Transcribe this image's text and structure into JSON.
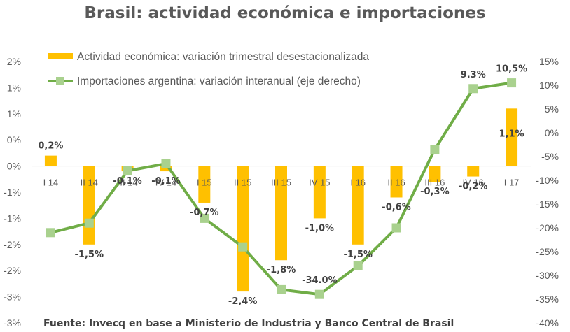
{
  "chart_data": {
    "type": "bar",
    "title": "Brasil: actividad económica e importaciones",
    "categories": [
      "I 14",
      "II 14",
      "III 14",
      "IV 14",
      "I 15",
      "II 15",
      "III 15",
      "IV 15",
      "I 16",
      "II 16",
      "III 16",
      "IV 16",
      "I 17"
    ],
    "series": [
      {
        "name": "Actividad económica: variación trimestral desestacionalizada",
        "type": "bar",
        "axis": "left",
        "color": "#FFC000",
        "values": [
          0.2,
          -1.5,
          -0.1,
          -0.1,
          -0.7,
          -2.4,
          -1.8,
          -1.0,
          -1.5,
          -0.6,
          -0.3,
          -0.2,
          1.1
        ],
        "labels": [
          "0,2%",
          "-1,5%",
          "-0,1%",
          "-0,1%",
          "-0,7%",
          "-2,4%",
          "-1,8%",
          "-1,0%",
          "-1,5%",
          "-0,6%",
          "-0,3%",
          "-0,2%",
          "1,1%"
        ]
      },
      {
        "name": "Importaciones argentina: variación interanual (eje derecho)",
        "type": "line",
        "axis": "right",
        "color": "#70AD47",
        "marker_color": "#A9D18E",
        "values": [
          -21,
          -19,
          -8,
          -6.5,
          -18,
          -24,
          -33,
          -34,
          -28,
          -20,
          -3.5,
          9.3,
          10.5
        ],
        "labels": [
          "9.3%",
          "10,5%"
        ],
        "labeled_points": [
          11,
          12
        ],
        "extra_label": "-34.0%",
        "extra_label_point": 7
      }
    ],
    "y_left": {
      "ylim": [
        -3.0,
        2.0
      ],
      "ticks": [
        2.0,
        1.5,
        1.0,
        0.5,
        0.0,
        -0.5,
        -1.0,
        -1.5,
        -2.0,
        -2.5,
        -3.0
      ],
      "tick_labels": [
        "2%",
        "1%",
        "1%",
        "0%",
        "0%",
        "-1%",
        "-1%",
        "-2%",
        "-2%",
        "-3%",
        "-3%"
      ]
    },
    "y_right": {
      "ylim": [
        -40,
        15
      ],
      "ticks": [
        15,
        10,
        5,
        0,
        -5,
        -10,
        -15,
        -20,
        -25,
        -30,
        -35,
        -40
      ],
      "tick_labels": [
        "15%",
        "10%",
        "5%",
        "0%",
        "-5%",
        "-10%",
        "-15%",
        "-20%",
        "-25%",
        "-30%",
        "-35%",
        "-40%"
      ]
    },
    "legend_position": "top-left",
    "grid": false,
    "source": "Fuente: Invecq en base a Ministerio de Industria y Banco Central de Brasil"
  }
}
